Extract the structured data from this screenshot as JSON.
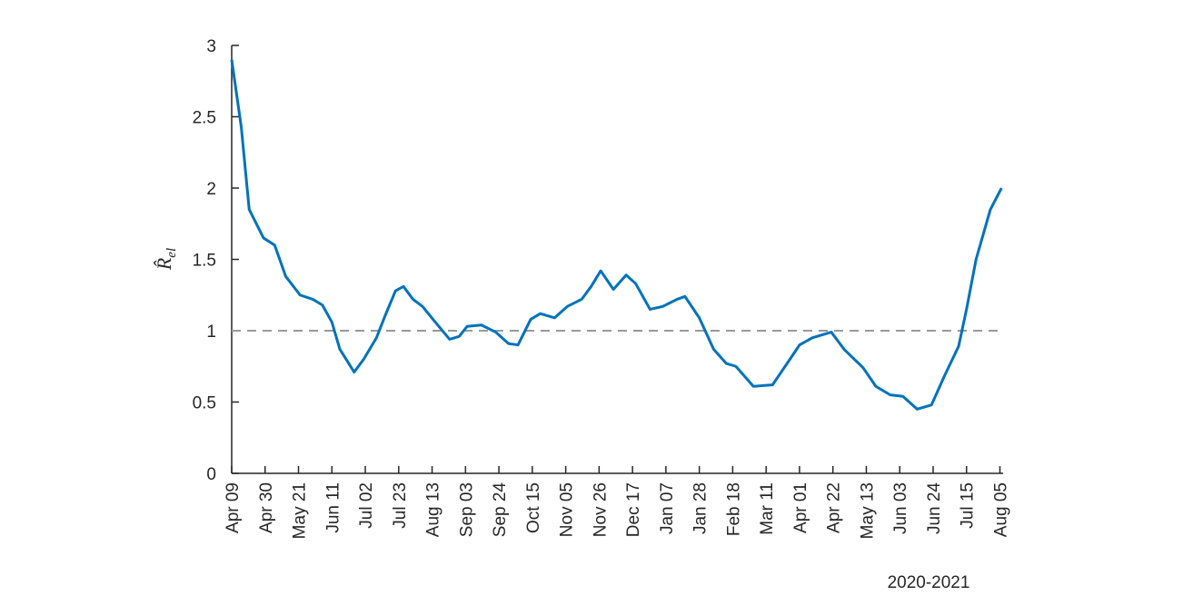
{
  "chart_data": {
    "type": "line",
    "ylabel": "R̂",
    "ylabel_subscript": "el",
    "xlabel": "2020-2021",
    "x": [
      0,
      6,
      11,
      20,
      27,
      34,
      43,
      51,
      57,
      63,
      68,
      77,
      83,
      91,
      97,
      103,
      108,
      114,
      120,
      128,
      137,
      143,
      148,
      157,
      166,
      174,
      180,
      188,
      194,
      203,
      211,
      220,
      226,
      232,
      240,
      248,
      254,
      263,
      271,
      280,
      285,
      294,
      303,
      311,
      317,
      328,
      340,
      351,
      357,
      365,
      377,
      385,
      397,
      405,
      414,
      422,
      431,
      440,
      448,
      457,
      462,
      468,
      477,
      484
    ],
    "series": [
      {
        "color": "#0072bd",
        "values": [
          2.9,
          2.43,
          1.85,
          1.65,
          1.6,
          1.38,
          1.25,
          1.22,
          1.18,
          1.06,
          0.87,
          0.71,
          0.8,
          0.95,
          1.12,
          1.28,
          1.31,
          1.22,
          1.17,
          1.06,
          0.94,
          0.96,
          1.03,
          1.04,
          0.99,
          0.91,
          0.9,
          1.08,
          1.12,
          1.09,
          1.17,
          1.22,
          1.31,
          1.42,
          1.29,
          1.39,
          1.33,
          1.15,
          1.17,
          1.22,
          1.24,
          1.09,
          0.87,
          0.77,
          0.75,
          0.61,
          0.62,
          0.8,
          0.9,
          0.95,
          0.99,
          0.87,
          0.74,
          0.61,
          0.55,
          0.54,
          0.45,
          0.48,
          0.68,
          0.89,
          1.15,
          1.5,
          1.85,
          2.0
        ]
      }
    ],
    "reference_line": {
      "value": 1,
      "color": "#999999",
      "dashed": true
    },
    "xlim": [
      0,
      485
    ],
    "xticks": [
      {
        "value": 0,
        "label": "Apr 09"
      },
      {
        "value": 21,
        "label": "Apr 30"
      },
      {
        "value": 42,
        "label": "May 21"
      },
      {
        "value": 63,
        "label": "Jun 11"
      },
      {
        "value": 84,
        "label": "Jul 02"
      },
      {
        "value": 105,
        "label": "Jul 23"
      },
      {
        "value": 126,
        "label": "Aug 13"
      },
      {
        "value": 147,
        "label": "Sep 03"
      },
      {
        "value": 168,
        "label": "Sep 24"
      },
      {
        "value": 189,
        "label": "Oct 15"
      },
      {
        "value": 210,
        "label": "Nov 05"
      },
      {
        "value": 231,
        "label": "Nov 26"
      },
      {
        "value": 252,
        "label": "Dec 17"
      },
      {
        "value": 273,
        "label": "Jan 07"
      },
      {
        "value": 294,
        "label": "Jan 28"
      },
      {
        "value": 315,
        "label": "Feb 18"
      },
      {
        "value": 336,
        "label": "Mar 11"
      },
      {
        "value": 357,
        "label": "Apr 01"
      },
      {
        "value": 378,
        "label": "Apr 22"
      },
      {
        "value": 399,
        "label": "May 13"
      },
      {
        "value": 420,
        "label": "Jun 03"
      },
      {
        "value": 441,
        "label": "Jun 24"
      },
      {
        "value": 462,
        "label": "Jul 15"
      },
      {
        "value": 483,
        "label": "Aug 05"
      }
    ],
    "ylim": [
      0,
      3
    ],
    "yticks": [
      0,
      0.5,
      1,
      1.5,
      2,
      2.5,
      3
    ],
    "grid": false
  }
}
